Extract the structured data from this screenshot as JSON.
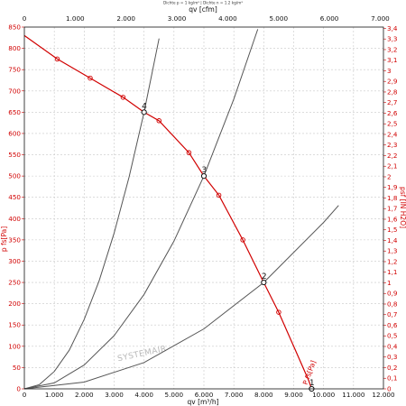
{
  "chart_data": {
    "type": "line",
    "title": "Dichte p = 1 kg/m³ | Dichte n = 1.2 kg/m³",
    "xlabel_bottom": "qv [m³/h]",
    "xlabel_top": "qv [cfm]",
    "ylabel_left": "p fs[Pa]",
    "ylabel_right": "psf [IN H2O]",
    "curve_label": "P fs[Pa]",
    "watermark": "SYSTEMAIR",
    "xlim": [
      0,
      12000
    ],
    "ylim": [
      0,
      850
    ],
    "x_ticks_bottom": [
      "0",
      "1.000",
      "2.000",
      "3.000",
      "4.000",
      "5.000",
      "6.000",
      "7.000",
      "8.000",
      "9.000",
      "10.000",
      "11.000",
      "12.000"
    ],
    "x_ticks_top": [
      "0",
      "1.000",
      "2.000",
      "3.000",
      "4.000",
      "5.000",
      "6.000",
      "7.000"
    ],
    "y_ticks_left": [
      "0",
      "50",
      "100",
      "150",
      "200",
      "250",
      "300",
      "350",
      "400",
      "450",
      "500",
      "550",
      "600",
      "650",
      "700",
      "750",
      "800",
      "850"
    ],
    "y_ticks_right": [
      "0",
      "0,1",
      "0,2",
      "0,3",
      "0,4",
      "0,5",
      "0,6",
      "0,7",
      "0,8",
      "0,9",
      "1",
      "1,1",
      "1,2",
      "1,3",
      "1,4",
      "1,5",
      "1,6",
      "1,7",
      "1,8",
      "1,9",
      "2",
      "2,1",
      "2,2",
      "2,3",
      "2,4",
      "2,5",
      "2,6",
      "2,7",
      "2,8",
      "2,9",
      "3",
      "3,1",
      "3,2",
      "3,3",
      "3,4"
    ],
    "grid": true,
    "fan_curve": {
      "color": "#d10000",
      "x": [
        0,
        1100,
        2200,
        3300,
        4000,
        4500,
        5500,
        6000,
        6500,
        7300,
        8000,
        8500,
        9000,
        9500,
        9600
      ],
      "y": [
        830,
        775,
        730,
        685,
        650,
        630,
        555,
        500,
        455,
        350,
        250,
        180,
        100,
        20,
        0
      ]
    },
    "fan_curve_markers": {
      "x": [
        1100,
        2200,
        3300,
        4500,
        5500,
        6500,
        7300,
        8500
      ],
      "y": [
        775,
        730,
        685,
        630,
        555,
        455,
        350,
        180
      ]
    },
    "system_curves": [
      {
        "color": "#555555",
        "x": [
          0,
          500,
          1000,
          1500,
          2000,
          2500,
          3000,
          3500,
          4000,
          4500
        ],
        "y": [
          0,
          10,
          41,
          91,
          163,
          254,
          366,
          498,
          650,
          823
        ]
      },
      {
        "color": "#555555",
        "x": [
          0,
          1000,
          2000,
          3000,
          4000,
          5000,
          6000,
          7000,
          7800
        ],
        "y": [
          0,
          14,
          56,
          125,
          222,
          347,
          500,
          681,
          845
        ]
      },
      {
        "color": "#555555",
        "x": [
          0,
          2000,
          4000,
          6000,
          8000,
          10000,
          10500
        ],
        "y": [
          0,
          16,
          62,
          141,
          250,
          391,
          431
        ]
      }
    ],
    "operating_points": [
      {
        "label": "1",
        "x": 9600,
        "y": 0
      },
      {
        "label": "2",
        "x": 8000,
        "y": 250
      },
      {
        "label": "3",
        "x": 6000,
        "y": 500
      },
      {
        "label": "4",
        "x": 4000,
        "y": 650
      }
    ]
  }
}
